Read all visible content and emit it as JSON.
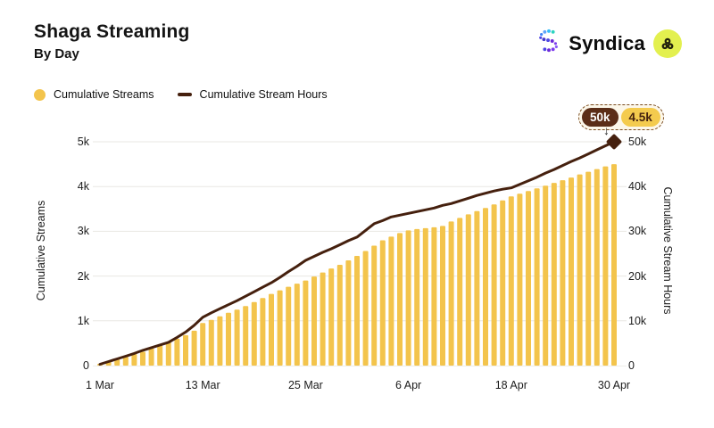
{
  "header": {
    "title": "Shaga Streaming",
    "subtitle": "By Day"
  },
  "brand": {
    "name": "Syndica"
  },
  "legend": {
    "streams_label": "Cumulative Streams",
    "hours_label": "Cumulative Stream Hours"
  },
  "callout": {
    "hours_value": "50k",
    "streams_value": "4.5k",
    "arrow": "↓"
  },
  "colors": {
    "bar": "#F3C44C",
    "line": "#45200E",
    "grid": "#E9E7E3",
    "badge_hours_bg": "#5B2D17",
    "badge_streams_bg": "#F4CB4E",
    "shaga_lime": "#E3F04F"
  },
  "chart_data": {
    "type": "bar+line",
    "title": "Shaga Streaming By Day",
    "categories": [
      "1 Mar",
      "2 Mar",
      "3 Mar",
      "4 Mar",
      "5 Mar",
      "6 Mar",
      "7 Mar",
      "8 Mar",
      "9 Mar",
      "10 Mar",
      "11 Mar",
      "12 Mar",
      "13 Mar",
      "14 Mar",
      "15 Mar",
      "16 Mar",
      "17 Mar",
      "18 Mar",
      "19 Mar",
      "20 Mar",
      "21 Mar",
      "22 Mar",
      "23 Mar",
      "24 Mar",
      "25 Mar",
      "26 Mar",
      "27 Mar",
      "28 Mar",
      "29 Mar",
      "30 Mar",
      "31 Mar",
      "1 Apr",
      "2 Apr",
      "3 Apr",
      "4 Apr",
      "5 Apr",
      "6 Apr",
      "7 Apr",
      "8 Apr",
      "9 Apr",
      "10 Apr",
      "11 Apr",
      "12 Apr",
      "13 Apr",
      "14 Apr",
      "15 Apr",
      "16 Apr",
      "17 Apr",
      "18 Apr",
      "19 Apr",
      "20 Apr",
      "21 Apr",
      "22 Apr",
      "23 Apr",
      "24 Apr",
      "25 Apr",
      "26 Apr",
      "27 Apr",
      "28 Apr",
      "29 Apr",
      "30 Apr"
    ],
    "series": [
      {
        "name": "Cumulative Streams",
        "type": "bar",
        "axis": "left",
        "unit": "k streams",
        "color": "#F3C44C",
        "values": [
          0.04,
          0.09,
          0.14,
          0.2,
          0.26,
          0.31,
          0.38,
          0.45,
          0.52,
          0.6,
          0.68,
          0.78,
          0.95,
          1.02,
          1.1,
          1.18,
          1.25,
          1.33,
          1.42,
          1.51,
          1.6,
          1.68,
          1.76,
          1.83,
          1.9,
          1.99,
          2.08,
          2.17,
          2.25,
          2.35,
          2.45,
          2.56,
          2.68,
          2.8,
          2.88,
          2.96,
          3.02,
          3.05,
          3.07,
          3.09,
          3.12,
          3.22,
          3.3,
          3.38,
          3.45,
          3.52,
          3.6,
          3.69,
          3.78,
          3.84,
          3.9,
          3.96,
          4.02,
          4.08,
          4.14,
          4.2,
          4.27,
          4.33,
          4.39,
          4.45,
          4.5
        ]
      },
      {
        "name": "Cumulative Stream Hours",
        "type": "line",
        "axis": "right",
        "unit": "k hours",
        "color": "#45200E",
        "values": [
          0.3,
          0.9,
          1.5,
          2.1,
          2.7,
          3.4,
          4.0,
          4.6,
          5.2,
          6.3,
          7.5,
          9.0,
          10.8,
          11.8,
          12.7,
          13.6,
          14.5,
          15.5,
          16.5,
          17.5,
          18.5,
          19.7,
          21.0,
          22.2,
          23.5,
          24.4,
          25.3,
          26.1,
          27.0,
          27.9,
          28.7,
          30.2,
          31.7,
          32.4,
          33.2,
          33.6,
          34.0,
          34.4,
          34.8,
          35.2,
          35.8,
          36.2,
          36.8,
          37.4,
          38.0,
          38.5,
          39.0,
          39.4,
          39.7,
          40.5,
          41.3,
          42.1,
          43.0,
          43.8,
          44.7,
          45.6,
          46.4,
          47.3,
          48.2,
          49.1,
          50.0
        ]
      }
    ],
    "left_axis": {
      "title": "Cumulative Streams",
      "max": 5,
      "ticks": [
        {
          "label": "0",
          "value": 0
        },
        {
          "label": "1k",
          "value": 1
        },
        {
          "label": "2k",
          "value": 2
        },
        {
          "label": "3k",
          "value": 3
        },
        {
          "label": "4k",
          "value": 4
        },
        {
          "label": "5k",
          "value": 5
        }
      ]
    },
    "right_axis": {
      "title": "Cumulative Stream Hours",
      "max": 50,
      "ticks": [
        {
          "label": "0",
          "value": 0
        },
        {
          "label": "10k",
          "value": 10
        },
        {
          "label": "20k",
          "value": 20
        },
        {
          "label": "30k",
          "value": 30
        },
        {
          "label": "40k",
          "value": 40
        },
        {
          "label": "50k",
          "value": 50
        }
      ]
    },
    "x_axis": {
      "ticks": [
        {
          "label": "1 Mar",
          "index": 0
        },
        {
          "label": "13 Mar",
          "index": 12
        },
        {
          "label": "25 Mar",
          "index": 24
        },
        {
          "label": "6 Apr",
          "index": 36
        },
        {
          "label": "18 Apr",
          "index": 48
        },
        {
          "label": "30 Apr",
          "index": 60
        }
      ]
    },
    "legend_position": "top-left",
    "grid": "horizontal-only",
    "end_annotation": {
      "hours": "50k",
      "streams": "4.5k",
      "marker": "diamond"
    }
  }
}
